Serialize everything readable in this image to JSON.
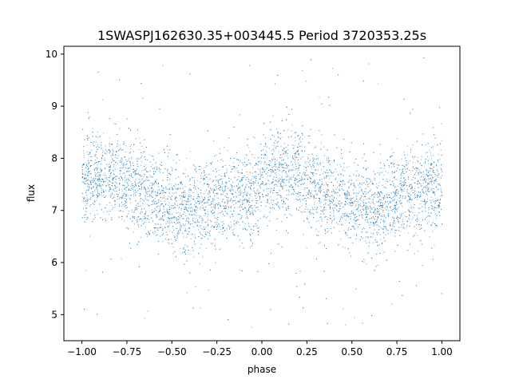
{
  "chart_data": {
    "type": "scatter",
    "title": "1SWASPJ162630.35+003445.5 Period 3720353.25s",
    "xlabel": "phase",
    "ylabel": "flux",
    "xlim": [
      -1.1,
      1.1
    ],
    "ylim": [
      4.5,
      10.15
    ],
    "xticks": [
      -1.0,
      -0.75,
      -0.5,
      -0.25,
      0.0,
      0.25,
      0.5,
      0.75,
      1.0
    ],
    "xtick_labels": [
      "−1.00",
      "−0.75",
      "−0.50",
      "−0.25",
      "0.00",
      "0.25",
      "0.50",
      "0.75",
      "1.00"
    ],
    "yticks": [
      5,
      6,
      7,
      8,
      9,
      10
    ],
    "ytick_labels": [
      "5",
      "6",
      "7",
      "8",
      "9",
      "10"
    ],
    "grid": false,
    "legend": "none",
    "point_color": "#1f77b4",
    "series": [
      {
        "phase_range": [
          -1.0,
          1.0
        ],
        "typical_flux_range": [
          6.3,
          8.6
        ],
        "outlier_flux_range": [
          4.75,
          9.95
        ],
        "mean_flux_profile": {
          "phase": [
            -1.0,
            -0.9,
            -0.8,
            -0.7,
            -0.6,
            -0.5,
            -0.4,
            -0.3,
            -0.2,
            -0.1,
            0.0,
            0.1,
            0.2,
            0.3,
            0.4,
            0.5,
            0.6,
            0.7,
            0.8,
            0.9,
            1.0
          ],
          "flux": [
            7.5,
            7.7,
            7.65,
            7.45,
            7.25,
            7.05,
            7.0,
            7.15,
            7.25,
            7.3,
            7.45,
            7.7,
            7.7,
            7.5,
            7.3,
            7.1,
            7.0,
            7.15,
            7.35,
            7.4,
            7.5
          ]
        }
      }
    ]
  }
}
